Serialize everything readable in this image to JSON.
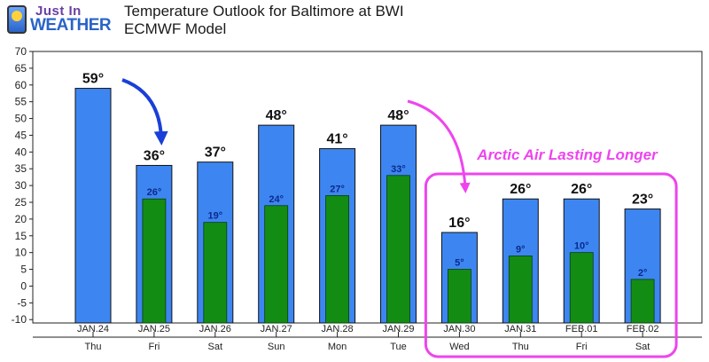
{
  "header": {
    "logo_text_top": "Just In",
    "logo_text_bottom": "WEATHER",
    "title_line1": "Temperature Outlook for Baltimore at BWI",
    "title_line2": "ECMWF Model"
  },
  "annotation": {
    "text": "Arctic Air Lasting Longer",
    "color": "#ee44ee"
  },
  "colors": {
    "high_bar": "#3d86f2",
    "low_bar": "#138c13",
    "blue_arrow": "#1a3fd8",
    "magenta": "#ee44ee"
  },
  "chart_data": {
    "type": "bar",
    "title": "Temperature Outlook for Baltimore at BWI",
    "subtitle": "ECMWF Model",
    "categories": [
      "JAN.24",
      "JAN.25",
      "JAN.26",
      "JAN.27",
      "JAN.28",
      "JAN.29",
      "JAN.30",
      "JAN.31",
      "FEB.01",
      "FEB.02"
    ],
    "days": [
      "Thu",
      "Fri",
      "Sat",
      "Sun",
      "Mon",
      "Tue",
      "Wed",
      "Thu",
      "Fri",
      "Sat"
    ],
    "series": [
      {
        "key": "high",
        "values": [
          59,
          36,
          37,
          48,
          41,
          48,
          16,
          26,
          26,
          23
        ],
        "labels": [
          "59°",
          "36°",
          "37°",
          "48°",
          "41°",
          "48°",
          "16°",
          "26°",
          "26°",
          "23°"
        ]
      },
      {
        "key": "low",
        "values": [
          null,
          26,
          19,
          24,
          27,
          33,
          5,
          9,
          10,
          2
        ],
        "labels": [
          "",
          "26°",
          "19°",
          "24°",
          "27°",
          "33°",
          "5°",
          "9°",
          "10°",
          "2°"
        ]
      }
    ],
    "y_ticks": [
      -10,
      -5,
      0,
      5,
      10,
      15,
      20,
      25,
      30,
      35,
      40,
      45,
      50,
      55,
      60,
      65,
      70
    ],
    "ylim": [
      -11,
      70
    ],
    "grid": false,
    "highlight_range": [
      "JAN.30",
      "FEB.02"
    ]
  }
}
